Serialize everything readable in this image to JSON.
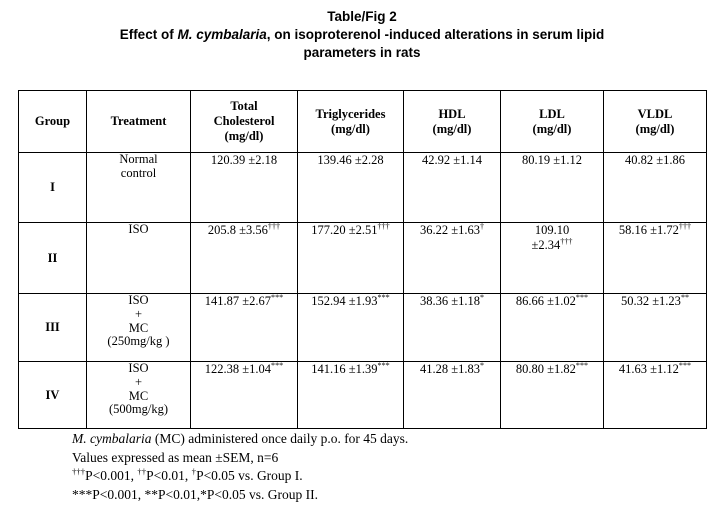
{
  "title": {
    "line1": "Table/Fig 2",
    "line2": [
      {
        "t": "Effect of "
      },
      {
        "t": "M. cymbalaria",
        "i": true
      },
      {
        "t": ", on isoproterenol -induced alterations in serum lipid"
      }
    ],
    "line3": "parameters in rats"
  },
  "table": {
    "headers": [
      "Group",
      "Treatment",
      "Total\nCholesterol\n(mg/dl)",
      "Triglycerides\n(mg/dl)",
      "HDL\n(mg/dl)",
      "LDL\n(mg/dl)",
      "VLDL\n(mg/dl)"
    ],
    "rows": [
      {
        "group": "I",
        "treatment": "Normal\ncontrol",
        "values": [
          [
            {
              "t": "120.39 ±2.18"
            }
          ],
          [
            {
              "t": "139.46 ±2.28"
            }
          ],
          [
            {
              "t": "42.92 ±1.14"
            }
          ],
          [
            {
              "t": "80.19 ±1.12"
            }
          ],
          [
            {
              "t": "40.82 ±1.86"
            }
          ]
        ]
      },
      {
        "group": "II",
        "treatment": "ISO",
        "values": [
          [
            {
              "t": "205.8 ±3.56"
            },
            {
              "t": "†††",
              "sup": true
            }
          ],
          [
            {
              "t": "177.20 ±2.51"
            },
            {
              "t": "†††",
              "sup": true
            }
          ],
          [
            {
              "t": "36.22 ±1.63"
            },
            {
              "t": "†",
              "sup": true
            }
          ],
          [
            {
              "t": "109.10\n±2.34"
            },
            {
              "t": "†††",
              "sup": true
            }
          ],
          [
            {
              "t": "58.16 ±1.72"
            },
            {
              "t": "†††",
              "sup": true
            }
          ]
        ]
      },
      {
        "group": "III",
        "treatment": "ISO\n+\nMC\n(250mg/kg )",
        "values": [
          [
            {
              "t": "141.87 ±2.67"
            },
            {
              "t": "***",
              "sup": true
            }
          ],
          [
            {
              "t": "152.94 ±1.93"
            },
            {
              "t": "***",
              "sup": true
            }
          ],
          [
            {
              "t": "38.36 ±1.18"
            },
            {
              "t": "*",
              "sup": true
            }
          ],
          [
            {
              "t": "86.66 ±1.02"
            },
            {
              "t": "***",
              "sup": true
            }
          ],
          [
            {
              "t": "50.32 ±1.23"
            },
            {
              "t": "**",
              "sup": true
            }
          ]
        ]
      },
      {
        "group": "IV",
        "treatment": "ISO\n+\nMC\n(500mg/kg)",
        "values": [
          [
            {
              "t": "122.38 ±1.04"
            },
            {
              "t": "***",
              "sup": true
            }
          ],
          [
            {
              "t": "141.16 ±1.39"
            },
            {
              "t": "***",
              "sup": true
            }
          ],
          [
            {
              "t": "41.28 ±1.83"
            },
            {
              "t": "*",
              "sup": true
            }
          ],
          [
            {
              "t": "80.80 ±1.82"
            },
            {
              "t": "***",
              "sup": true
            }
          ],
          [
            {
              "t": "41.63 ±1.12"
            },
            {
              "t": "***",
              "sup": true
            }
          ]
        ]
      }
    ]
  },
  "footnotes": [
    [
      {
        "t": "M. cymbalaria",
        "i": true
      },
      {
        "t": " (MC) administered once daily p.o. for 45 days."
      }
    ],
    [
      {
        "t": "Values expressed as mean ±SEM, n=6"
      }
    ],
    [
      {
        "t": "†††",
        "sup": true
      },
      {
        "t": "P<0.001, "
      },
      {
        "t": "††",
        "sup": true
      },
      {
        "t": "P<0.01, "
      },
      {
        "t": "†",
        "sup": true
      },
      {
        "t": "P<0.05 vs. Group I."
      }
    ],
    [
      {
        "t": "***P<0.001, **P<0.01,*P<0.05 vs. Group II."
      }
    ]
  ],
  "colors": {
    "text": "#000000",
    "background": "#ffffff",
    "border": "#000000"
  }
}
